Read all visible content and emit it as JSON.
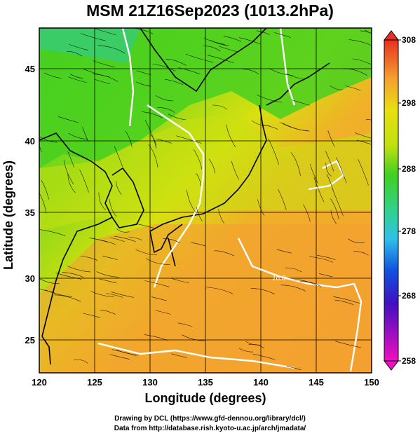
{
  "title": "MSM 21Z16Sep2023 (1013.2hPa)",
  "xlabel": "Longitude (degrees)",
  "ylabel": "Latitude  (degrees)",
  "x_ticks": [
    "120",
    "125",
    "130",
    "135",
    "140",
    "145",
    "150"
  ],
  "y_ticks": [
    "25",
    "30",
    "35",
    "40",
    "45"
  ],
  "colorbar_ticks": [
    "308",
    "298",
    "288",
    "278",
    "268",
    "258"
  ],
  "contour_label": "16.0",
  "credit_line1": "Drawing by DCL (https://www.gfd-dennou.org/library/dcl/)",
  "credit_line2": "Data from http://database.rish.kyoto-u.ac.jp/arch/jmadata/",
  "map_data": {
    "lon_range": [
      120,
      150
    ],
    "lat_range": [
      22.4,
      47.6
    ],
    "colorbar_range": [
      258,
      308
    ],
    "colors": {
      "warm": "#f4a030",
      "mid": "#e0e010",
      "cool": "#40d020",
      "cold": "#30c8a0",
      "contour": "#ffffff",
      "coast": "#000000"
    }
  }
}
